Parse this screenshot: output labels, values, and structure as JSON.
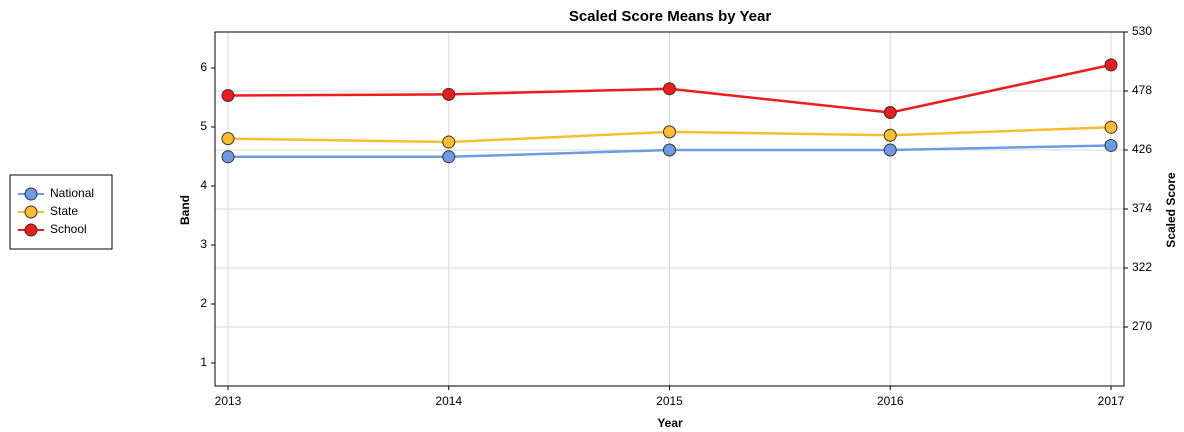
{
  "chart_data": {
    "type": "line",
    "title": "Scaled Score Means by Year",
    "xlabel": "Year",
    "ylabel": "Band",
    "y2label": "Scaled Score",
    "categories": [
      "2013",
      "2014",
      "2015",
      "2016",
      "2017"
    ],
    "ylim": [
      0.61,
      6.61
    ],
    "yticks": [
      1,
      2,
      3,
      4,
      5,
      6
    ],
    "y2lim": [
      218,
      530
    ],
    "y2ticks": [
      270,
      322,
      374,
      426,
      478,
      530
    ],
    "grid": true,
    "legend": "left",
    "series": [
      {
        "name": "National",
        "color": "#6f9be6",
        "axis": "y2",
        "values": [
          420,
          420,
          426,
          426,
          430
        ]
      },
      {
        "name": "State",
        "color": "#fbbd2f",
        "axis": "y2",
        "values": [
          436,
          433,
          442,
          439,
          446
        ]
      },
      {
        "name": "School",
        "color": "#ee1c1c",
        "axis": "y2",
        "values": [
          474,
          475,
          480,
          459,
          501
        ]
      }
    ]
  }
}
